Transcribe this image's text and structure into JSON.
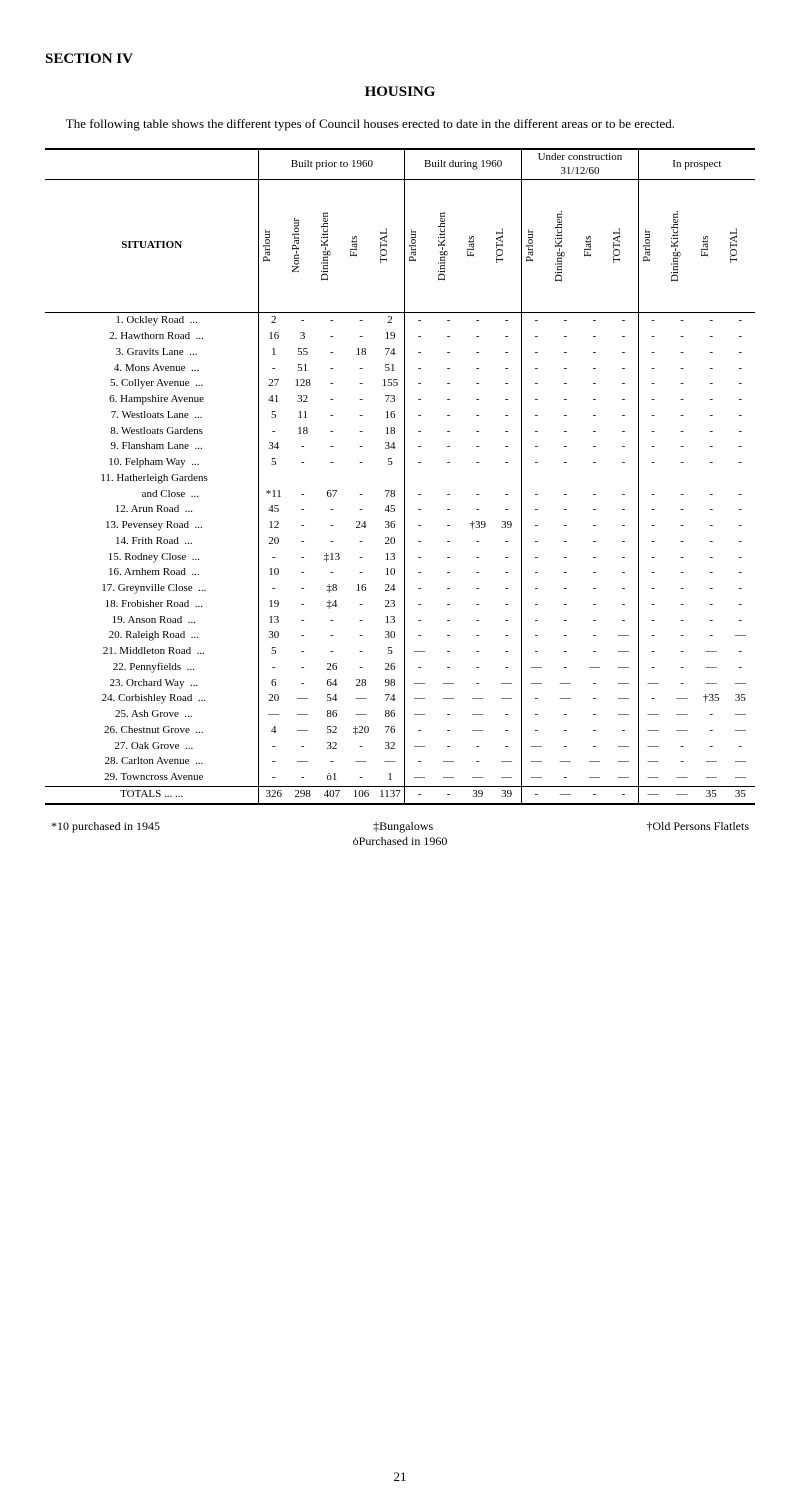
{
  "section_label": "SECTION IV",
  "title": "HOUSING",
  "intro": "The following table shows the different types of Council houses erected to date in the different areas or to be erected.",
  "phase_headers": [
    "Built prior to 1960",
    "Built during 1960",
    "Under construction 31/12/60",
    "In prospect"
  ],
  "col_headers": [
    "Parlour",
    "Non-Parlour",
    "Dining-Kitchen",
    "Flats",
    "TOTAL",
    "Parlour",
    "Dining-Kitchen",
    "Flats",
    "TOTAL",
    "Parlour",
    "Dining-Kitchen.",
    "Flats",
    "TOTAL",
    "Parlour",
    "Dining-Kitchen.",
    "Flats",
    "TOTAL"
  ],
  "situation_label": "SITUATION",
  "rows": [
    {
      "n": "1.",
      "name": "Ockley Road",
      "dots": "...",
      "c": [
        "2",
        "-",
        "-",
        "-",
        "2",
        "-",
        "-",
        "-",
        "-",
        "-",
        "-",
        "-",
        "-",
        "-",
        "-",
        "-",
        "-"
      ]
    },
    {
      "n": "2.",
      "name": "Hawthorn Road",
      "dots": "...",
      "c": [
        "16",
        "3",
        "-",
        "-",
        "19",
        "-",
        "-",
        "-",
        "-",
        "-",
        "-",
        "-",
        "-",
        "-",
        "-",
        "-",
        "-"
      ]
    },
    {
      "n": "3.",
      "name": "Gravits Lane",
      "dots": "...",
      "c": [
        "1",
        "55",
        "-",
        "18",
        "74",
        "-",
        "-",
        "-",
        "-",
        "-",
        "-",
        "-",
        "-",
        "-",
        "-",
        "-",
        "-"
      ]
    },
    {
      "n": "4.",
      "name": "Mons Avenue",
      "dots": "...",
      "c": [
        "-",
        "51",
        "-",
        "-",
        "51",
        "-",
        "-",
        "-",
        "-",
        "-",
        "-",
        "-",
        "-",
        "-",
        "-",
        "-",
        "-"
      ]
    },
    {
      "n": "5.",
      "name": "Collyer Avenue",
      "dots": "...",
      "c": [
        "27",
        "128",
        "-",
        "-",
        "155",
        "-",
        "-",
        "-",
        "-",
        "-",
        "-",
        "-",
        "-",
        "-",
        "-",
        "-",
        "-"
      ]
    },
    {
      "n": "6.",
      "name": "Hampshire Avenue",
      "dots": "",
      "c": [
        "41",
        "32",
        "-",
        "-",
        "73",
        "-",
        "-",
        "-",
        "-",
        "-",
        "-",
        "-",
        "-",
        "-",
        "-",
        "-",
        "-"
      ]
    },
    {
      "n": "7.",
      "name": "Westloats Lane",
      "dots": "...",
      "c": [
        "5",
        "11",
        "-",
        "-",
        "16",
        "-",
        "-",
        "-",
        "-",
        "-",
        "-",
        "-",
        "-",
        "-",
        "-",
        "-",
        "-"
      ]
    },
    {
      "n": "8.",
      "name": "Westloats Gardens",
      "dots": "",
      "c": [
        "-",
        "18",
        "-",
        "-",
        "18",
        "-",
        "-",
        "-",
        "-",
        "-",
        "-",
        "-",
        "-",
        "-",
        "-",
        "-",
        "-"
      ]
    },
    {
      "n": "9.",
      "name": "Flansham Lane",
      "dots": "...",
      "c": [
        "34",
        "-",
        "-",
        "-",
        "34",
        "-",
        "-",
        "-",
        "-",
        "-",
        "-",
        "-",
        "-",
        "-",
        "-",
        "-",
        "-"
      ]
    },
    {
      "n": "10.",
      "name": "Felpham Way",
      "dots": "...",
      "c": [
        "5",
        "-",
        "-",
        "-",
        "5",
        "-",
        "-",
        "-",
        "-",
        "-",
        "-",
        "-",
        "-",
        "-",
        "-",
        "-",
        "-"
      ]
    },
    {
      "n": "11.",
      "name": "Hatherleigh Gardens",
      "dots": "",
      "c": [
        "",
        "",
        "",
        "",
        "",
        "",
        "",
        "",
        "",
        "",
        "",
        "",
        "",
        "",
        "",
        "",
        ""
      ]
    },
    {
      "n": "",
      "name": "      and Close",
      "dots": "...",
      "c": [
        "*11",
        "-",
        "67",
        "-",
        "78",
        "-",
        "-",
        "-",
        "-",
        "-",
        "-",
        "-",
        "-",
        "-",
        "-",
        "-",
        "-"
      ]
    },
    {
      "n": "12.",
      "name": "Arun Road",
      "dots": "...",
      "c": [
        "45",
        "-",
        "-",
        "-",
        "45",
        "-",
        "-",
        "-",
        "-",
        "-",
        "-",
        "-",
        "-",
        "-",
        "-",
        "-",
        "-"
      ]
    },
    {
      "n": "13.",
      "name": "Pevensey Road",
      "dots": "...",
      "c": [
        "12",
        "-",
        "-",
        "24",
        "36",
        "-",
        "-",
        "†39",
        "39",
        "-",
        "-",
        "-",
        "-",
        "-",
        "-",
        "-",
        "-"
      ]
    },
    {
      "n": "14.",
      "name": "Frith Road",
      "dots": "...",
      "c": [
        "20",
        "-",
        "-",
        "-",
        "20",
        "-",
        "-",
        "-",
        "-",
        "-",
        "-",
        "-",
        "-",
        "-",
        "-",
        "-",
        "-"
      ]
    },
    {
      "n": "15.",
      "name": "Rodney Close",
      "dots": "...",
      "c": [
        "-",
        "-",
        "‡13",
        "-",
        "13",
        "-",
        "-",
        "-",
        "-",
        "-",
        "-",
        "-",
        "-",
        "-",
        "-",
        "-",
        "-"
      ]
    },
    {
      "n": "16.",
      "name": "Arnhem Road",
      "dots": "...",
      "c": [
        "10",
        "-",
        "-",
        "-",
        "10",
        "-",
        "-",
        "-",
        "-",
        "-",
        "-",
        "-",
        "-",
        "-",
        "-",
        "-",
        "-"
      ]
    },
    {
      "n": "17.",
      "name": "Greynville Close",
      "dots": "...",
      "c": [
        "-",
        "-",
        "‡8",
        "16",
        "24",
        "-",
        "-",
        "-",
        "-",
        "-",
        "-",
        "-",
        "-",
        "-",
        "-",
        "-",
        "-"
      ]
    },
    {
      "n": "18.",
      "name": "Frobisher Road",
      "dots": "...",
      "c": [
        "19",
        "-",
        "‡4",
        "-",
        "23",
        "-",
        "-",
        "-",
        "-",
        "-",
        "-",
        "-",
        "-",
        "-",
        "-",
        "-",
        "-"
      ]
    },
    {
      "n": "19.",
      "name": "Anson Road",
      "dots": "...",
      "c": [
        "13",
        "-",
        "-",
        "-",
        "13",
        "-",
        "-",
        "-",
        "-",
        "-",
        "-",
        "-",
        "-",
        "-",
        "-",
        "-",
        "-"
      ]
    },
    {
      "n": "20.",
      "name": "Raleigh Road",
      "dots": "...",
      "c": [
        "30",
        "-",
        "-",
        "-",
        "30",
        "-",
        "-",
        "-",
        "-",
        "-",
        "-",
        "-",
        "—",
        "-",
        "-",
        "-",
        "—"
      ]
    },
    {
      "n": "21.",
      "name": "Middleton Road",
      "dots": "...",
      "c": [
        "5",
        "-",
        "-",
        "-",
        "5",
        "—",
        "-",
        "-",
        "-",
        "-",
        "-",
        "-",
        "—",
        "-",
        "-",
        "—",
        "-"
      ]
    },
    {
      "n": "22.",
      "name": "Pennyfields",
      "dots": "...",
      "c": [
        "-",
        "-",
        "26",
        "-",
        "26",
        "-",
        "-",
        "-",
        "-",
        "—",
        "-",
        "—",
        "—",
        "-",
        "-",
        "—",
        "-"
      ]
    },
    {
      "n": "23.",
      "name": "Orchard Way",
      "dots": "...",
      "c": [
        "6",
        "-",
        "64",
        "28",
        "98",
        "—",
        "—",
        "-",
        "—",
        "—",
        "—",
        "-",
        "—",
        "—",
        "-",
        "—",
        "—"
      ]
    },
    {
      "n": "24.",
      "name": "Corbishley Road",
      "dots": "...",
      "c": [
        "20",
        "—",
        "54",
        "—",
        "74",
        "—",
        "—",
        "—",
        "—",
        "-",
        "—",
        "-",
        "—",
        "-",
        "—",
        "†35",
        "35"
      ]
    },
    {
      "n": "25.",
      "name": "Ash Grove",
      "dots": "...",
      "c": [
        "—",
        "—",
        "86",
        "—",
        "86",
        "—",
        "-",
        "—",
        "-",
        "-",
        "-",
        "-",
        "—",
        "—",
        "—",
        "-",
        "—"
      ]
    },
    {
      "n": "26.",
      "name": "Chestnut Grove",
      "dots": "...",
      "c": [
        "4",
        "—",
        "52",
        "‡20",
        "76",
        "-",
        "-",
        "—",
        "-",
        "-",
        "-",
        "-",
        "-",
        "—",
        "—",
        "-",
        "—"
      ]
    },
    {
      "n": "27.",
      "name": "Oak Grove",
      "dots": "...",
      "c": [
        "-",
        "-",
        "32",
        "-",
        "32",
        "—",
        "-",
        "-",
        "-",
        "—",
        "-",
        "-",
        "—",
        "—",
        "-",
        "-",
        "-"
      ]
    },
    {
      "n": "28.",
      "name": "Carlton Avenue",
      "dots": "...",
      "c": [
        "-",
        "—",
        "-",
        "—",
        "—",
        "-",
        "—",
        "-",
        "—",
        "—",
        "—",
        "—",
        "—",
        "—",
        "-",
        "—",
        "—"
      ]
    },
    {
      "n": "29.",
      "name": "Towncross Avenue",
      "dots": "",
      "c": [
        "-",
        "-",
        "ȯ1",
        "-",
        "1",
        "—",
        "—",
        "—",
        "—",
        "—",
        "-",
        "—",
        "—",
        "—",
        "—",
        "—",
        "—"
      ]
    }
  ],
  "totals_label": "TOTALS ...   ...",
  "totals": [
    "326",
    "298",
    "407",
    "106",
    "1137",
    "-",
    "-",
    "39",
    "39",
    "-",
    "—",
    "-",
    "-",
    "—",
    "—",
    "35",
    "35"
  ],
  "footnote_left": "*10 purchased in 1945",
  "footnote_mid_top": "‡Bungalows",
  "footnote_mid_bot": "ȯPurchased in 1960",
  "footnote_right": "†Old Persons Flatlets",
  "page_number": "21"
}
